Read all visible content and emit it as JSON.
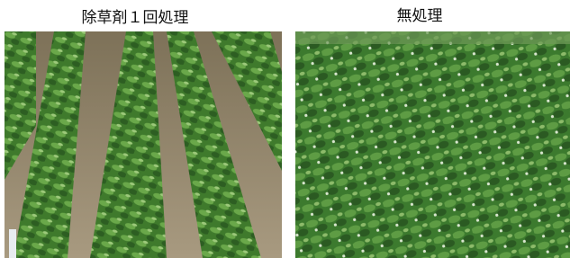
{
  "panels": [
    {
      "caption": "除草剤１回処理"
    },
    {
      "caption": "無処理"
    }
  ]
}
